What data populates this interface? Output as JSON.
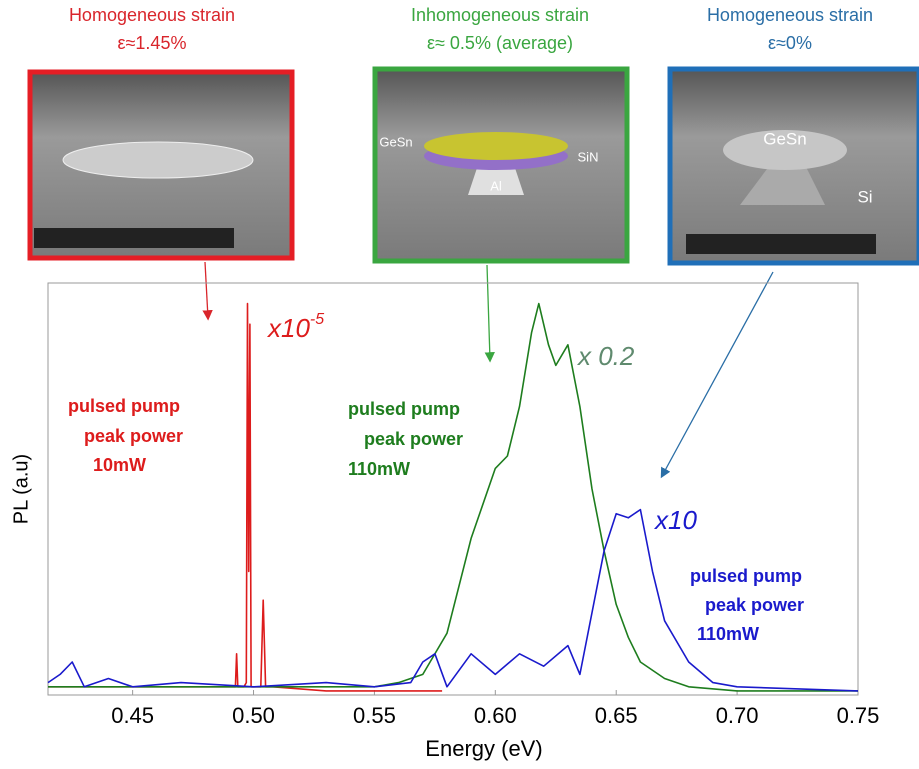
{
  "chart_data": {
    "type": "line",
    "xlabel": "Energy (eV)",
    "ylabel": "PL (a.u)",
    "xlim": [
      0.415,
      0.75
    ],
    "ylim": [
      0,
      1
    ],
    "xticks": [
      {
        "value": 0.45,
        "label": "0.45"
      },
      {
        "value": 0.5,
        "label": "0.50"
      },
      {
        "value": 0.55,
        "label": "0.55"
      },
      {
        "value": 0.6,
        "label": "0.60"
      },
      {
        "value": 0.65,
        "label": "0.65"
      },
      {
        "value": 0.7,
        "label": "0.70"
      },
      {
        "value": 0.75,
        "label": "0.75"
      }
    ],
    "series": [
      {
        "color": "#dd1c1c",
        "x": [
          0.415,
          0.44,
          0.47,
          0.49,
          0.4925,
          0.493,
          0.4935,
          0.496,
          0.497,
          0.4975,
          0.498,
          0.4985,
          0.499,
          0.4995,
          0.501,
          0.503,
          0.504,
          0.505,
          0.508,
          0.53,
          0.56,
          0.578
        ],
        "values": [
          0.02,
          0.02,
          0.02,
          0.02,
          0.02,
          0.1,
          0.02,
          0.02,
          0.03,
          0.95,
          0.3,
          0.9,
          0.02,
          0.02,
          0.02,
          0.02,
          0.23,
          0.02,
          0.02,
          0.01,
          0.01,
          0.01
        ]
      },
      {
        "color": "#1e7d1e",
        "x": [
          0.415,
          0.45,
          0.5,
          0.55,
          0.56,
          0.57,
          0.58,
          0.59,
          0.6,
          0.605,
          0.61,
          0.615,
          0.618,
          0.622,
          0.625,
          0.63,
          0.635,
          0.64,
          0.645,
          0.65,
          0.655,
          0.66,
          0.67,
          0.68,
          0.7,
          0.75
        ],
        "values": [
          0.02,
          0.02,
          0.02,
          0.02,
          0.03,
          0.05,
          0.15,
          0.38,
          0.55,
          0.58,
          0.7,
          0.88,
          0.95,
          0.85,
          0.8,
          0.85,
          0.7,
          0.5,
          0.35,
          0.22,
          0.14,
          0.08,
          0.04,
          0.02,
          0.01,
          0.01
        ]
      },
      {
        "color": "#1a1acc",
        "x": [
          0.415,
          0.42,
          0.425,
          0.43,
          0.44,
          0.45,
          0.47,
          0.5,
          0.53,
          0.55,
          0.565,
          0.57,
          0.575,
          0.58,
          0.59,
          0.6,
          0.61,
          0.62,
          0.63,
          0.635,
          0.64,
          0.645,
          0.65,
          0.655,
          0.66,
          0.665,
          0.67,
          0.68,
          0.69,
          0.7,
          0.75
        ],
        "values": [
          0.03,
          0.05,
          0.08,
          0.02,
          0.04,
          0.02,
          0.03,
          0.02,
          0.03,
          0.02,
          0.03,
          0.08,
          0.1,
          0.02,
          0.1,
          0.05,
          0.1,
          0.07,
          0.12,
          0.05,
          0.2,
          0.35,
          0.44,
          0.43,
          0.45,
          0.3,
          0.18,
          0.08,
          0.03,
          0.02,
          0.01
        ]
      }
    ],
    "annotations": [
      {
        "text": "x10",
        "sup": "-5",
        "color": "#dd1c1c"
      },
      {
        "text": "x 0.2",
        "color": "#5f8a6e"
      },
      {
        "text": "x10",
        "color": "#1a1acc"
      },
      {
        "lines": [
          "pulsed pump",
          "peak power",
          "10mW"
        ],
        "color": "#dd1c1c"
      },
      {
        "lines": [
          "pulsed pump",
          "peak power",
          "110mW"
        ],
        "color": "#1e7d1e"
      },
      {
        "lines": [
          "pulsed pump",
          "peak power",
          "110mW"
        ],
        "color": "#1a1acc"
      }
    ]
  },
  "panels": [
    {
      "title": "Homogeneous strain",
      "subtitle": "ε≈1.45%",
      "color": "#d9252b",
      "labels": []
    },
    {
      "title": "Inhomogeneous strain",
      "subtitle": "ε≈ 0.5% (average)",
      "color": "#3aa640",
      "labels": [
        "GeSn",
        "SiN",
        "Al"
      ]
    },
    {
      "title": "Homogeneous strain",
      "subtitle": "ε≈0%",
      "color": "#2a6ea6",
      "labels": [
        "GeSn",
        "Si"
      ]
    }
  ]
}
